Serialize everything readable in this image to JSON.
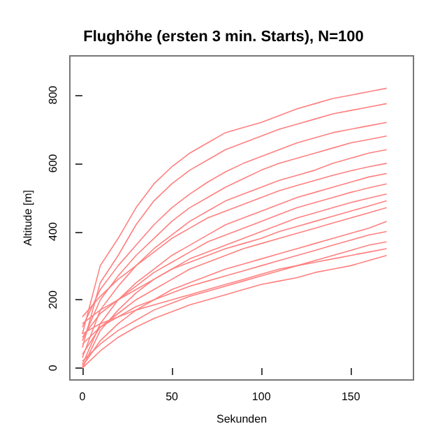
{
  "chart_data": {
    "type": "line",
    "title": "Flughöhe (ersten 3 min. Starts), N=100",
    "xlabel": "Sekunden",
    "ylabel": "Altitude [m]",
    "x": [
      0,
      10,
      20,
      30,
      40,
      50,
      60,
      70,
      80,
      90,
      100,
      110,
      120,
      130,
      140,
      150,
      160,
      170
    ],
    "xlim": [
      -7,
      185
    ],
    "xticks": [
      0,
      50,
      100,
      150
    ],
    "ylim": [
      -35,
      915
    ],
    "yticks": [
      0,
      200,
      400,
      600,
      800
    ],
    "grid": false,
    "marker": "none",
    "line_style": "solid",
    "series": [
      {
        "color": "#ff8080",
        "values": [
          100,
          300,
          380,
          470,
          540,
          590,
          630,
          660,
          690,
          705,
          720,
          740,
          760,
          775,
          790,
          800,
          810,
          820
        ]
      },
      {
        "color": "#ff8080",
        "values": [
          60,
          250,
          330,
          420,
          490,
          540,
          580,
          610,
          640,
          660,
          680,
          700,
          715,
          730,
          745,
          755,
          765,
          775
        ]
      },
      {
        "color": "#ff8080",
        "values": [
          120,
          230,
          300,
          360,
          420,
          470,
          510,
          545,
          575,
          600,
          620,
          640,
          660,
          675,
          690,
          700,
          710,
          720
        ]
      },
      {
        "color": "#ff8080",
        "values": [
          80,
          200,
          270,
          330,
          380,
          430,
          470,
          500,
          530,
          555,
          580,
          600,
          615,
          630,
          645,
          660,
          670,
          680
        ]
      },
      {
        "color": "#ff8080",
        "values": [
          30,
          170,
          240,
          300,
          350,
          390,
          430,
          460,
          490,
          510,
          530,
          550,
          565,
          580,
          600,
          615,
          630,
          640
        ]
      },
      {
        "color": "#ff8080",
        "values": [
          150,
          210,
          260,
          300,
          340,
          380,
          410,
          440,
          460,
          480,
          500,
          520,
          535,
          550,
          565,
          578,
          590,
          600
        ]
      },
      {
        "color": "#ff8080",
        "values": [
          10,
          130,
          200,
          250,
          290,
          330,
          360,
          390,
          420,
          440,
          460,
          480,
          500,
          515,
          530,
          545,
          560,
          570
        ]
      },
      {
        "color": "#ff8080",
        "values": [
          90,
          160,
          200,
          240,
          280,
          310,
          340,
          370,
          390,
          410,
          430,
          450,
          470,
          485,
          500,
          515,
          528,
          540
        ]
      },
      {
        "color": "#ff8080",
        "values": [
          0,
          110,
          170,
          220,
          260,
          290,
          320,
          340,
          360,
          380,
          400,
          420,
          440,
          455,
          470,
          485,
          498,
          510
        ]
      },
      {
        "color": "#ff8080",
        "values": [
          130,
          170,
          200,
          230,
          260,
          290,
          310,
          330,
          350,
          365,
          380,
          400,
          415,
          430,
          445,
          460,
          475,
          490
        ]
      },
      {
        "color": "#ff8080",
        "values": [
          40,
          120,
          160,
          200,
          230,
          260,
          290,
          310,
          330,
          350,
          365,
          380,
          395,
          410,
          425,
          440,
          455,
          470
        ]
      },
      {
        "color": "#ff8080",
        "values": [
          5,
          80,
          130,
          170,
          200,
          230,
          250,
          270,
          290,
          305,
          320,
          335,
          350,
          365,
          380,
          395,
          410,
          430
        ]
      },
      {
        "color": "#ff8080",
        "values": [
          70,
          120,
          150,
          180,
          200,
          220,
          240,
          255,
          270,
          285,
          300,
          315,
          330,
          345,
          360,
          375,
          390,
          400
        ]
      },
      {
        "color": "#ff8080",
        "values": [
          20,
          70,
          110,
          140,
          170,
          190,
          210,
          225,
          240,
          255,
          270,
          285,
          300,
          315,
          330,
          345,
          360,
          370
        ]
      },
      {
        "color": "#ff8080",
        "values": [
          100,
          130,
          150,
          170,
          185,
          200,
          215,
          230,
          245,
          260,
          275,
          290,
          300,
          310,
          320,
          330,
          340,
          350
        ]
      },
      {
        "color": "#ff8080",
        "values": [
          0,
          50,
          90,
          120,
          145,
          165,
          185,
          200,
          215,
          230,
          245,
          255,
          265,
          280,
          290,
          300,
          315,
          330
        ]
      }
    ]
  }
}
